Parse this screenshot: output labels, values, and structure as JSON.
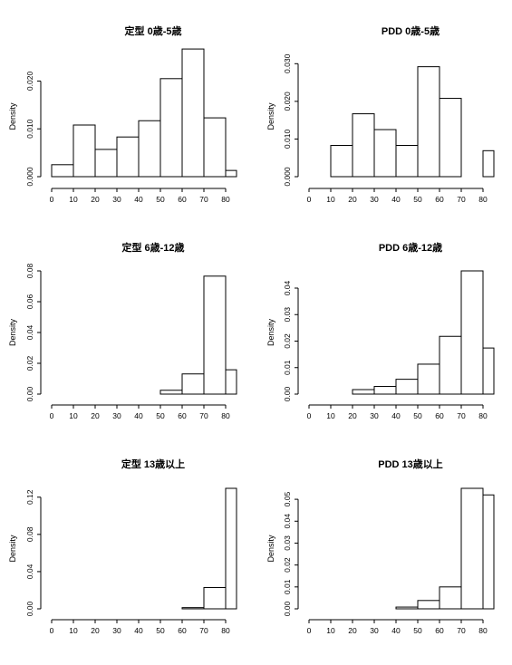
{
  "chart_data": [
    {
      "type": "bar",
      "title": "定型 0歳-5歳",
      "xlabel": "",
      "ylabel": "Density",
      "bin_edges": [
        0,
        10,
        20,
        30,
        40,
        50,
        60,
        70,
        80,
        85
      ],
      "values": [
        0.0025,
        0.0108,
        0.0057,
        0.0083,
        0.0117,
        0.0205,
        0.0267,
        0.0123,
        0.0013
      ],
      "xticks": [
        "0",
        "10",
        "20",
        "30",
        "40",
        "50",
        "60",
        "70",
        "80"
      ],
      "yticks": [
        "0.000",
        "0.010",
        "0.020"
      ],
      "ylim": [
        0,
        0.0252
      ]
    },
    {
      "type": "bar",
      "title": "PDD 0歳-5歳",
      "xlabel": "",
      "ylabel": "Density",
      "bin_edges": [
        0,
        10,
        20,
        30,
        40,
        50,
        60,
        70,
        80,
        85
      ],
      "values": [
        0.0,
        0.0083,
        0.0167,
        0.0125,
        0.0083,
        0.0292,
        0.0208,
        0.0,
        0.0069
      ],
      "xticks": [
        "0",
        "10",
        "20",
        "30",
        "40",
        "50",
        "60",
        "70",
        "80"
      ],
      "yticks": [
        "0.000",
        "0.010",
        "0.020",
        "0.030"
      ],
      "ylim": [
        0,
        0.032
      ]
    },
    {
      "type": "bar",
      "title": "定型 6歳-12歳",
      "xlabel": "",
      "ylabel": "Density",
      "bin_edges": [
        0,
        10,
        20,
        30,
        40,
        50,
        60,
        70,
        80,
        85
      ],
      "values": [
        0.0,
        0.0,
        0.0,
        0.0,
        0.0,
        0.0025,
        0.0131,
        0.0766,
        0.0158
      ],
      "xticks": [
        "0",
        "10",
        "20",
        "30",
        "40",
        "50",
        "60",
        "70",
        "80"
      ],
      "yticks": [
        "0.00",
        "0.02",
        "0.04",
        "0.06",
        "0.08"
      ],
      "ylim": [
        0,
        0.08
      ]
    },
    {
      "type": "bar",
      "title": "PDD 6歳-12歳",
      "xlabel": "",
      "ylabel": "Density",
      "bin_edges": [
        0,
        10,
        20,
        30,
        40,
        50,
        60,
        70,
        80,
        85
      ],
      "values": [
        0.0,
        0.0,
        0.0017,
        0.0029,
        0.0056,
        0.0113,
        0.0218,
        0.0465,
        0.0174
      ],
      "xticks": [
        "0",
        "10",
        "20",
        "30",
        "40",
        "50",
        "60",
        "70",
        "80"
      ],
      "yticks": [
        "0.00",
        "0.01",
        "0.02",
        "0.03",
        "0.04"
      ],
      "ylim": [
        0,
        0.0465
      ]
    },
    {
      "type": "bar",
      "title": "定型 13歳以上",
      "xlabel": "",
      "ylabel": "Density",
      "bin_edges": [
        0,
        10,
        20,
        30,
        40,
        50,
        60,
        70,
        80,
        85
      ],
      "values": [
        0.0,
        0.0,
        0.0,
        0.0,
        0.0,
        0.0,
        0.0013,
        0.0229,
        0.1295
      ],
      "xticks": [
        "0",
        "10",
        "20",
        "30",
        "40",
        "50",
        "60",
        "70",
        "80"
      ],
      "yticks": [
        "0.00",
        "0.04",
        "0.08",
        "0.12"
      ],
      "ylim": [
        0,
        0.1295
      ]
    },
    {
      "type": "bar",
      "title": "PDD 13歳以上",
      "xlabel": "",
      "ylabel": "Density",
      "bin_edges": [
        0,
        10,
        20,
        30,
        40,
        50,
        60,
        70,
        80,
        85
      ],
      "values": [
        0.0,
        0.0,
        0.0,
        0.0,
        0.0008,
        0.0038,
        0.01,
        0.055,
        0.052
      ],
      "xticks": [
        "0",
        "10",
        "20",
        "30",
        "40",
        "50",
        "60",
        "70",
        "80"
      ],
      "yticks": [
        "0.00",
        "0.01",
        "0.02",
        "0.03",
        "0.04",
        "0.05"
      ],
      "ylim": [
        0,
        0.055
      ]
    }
  ]
}
